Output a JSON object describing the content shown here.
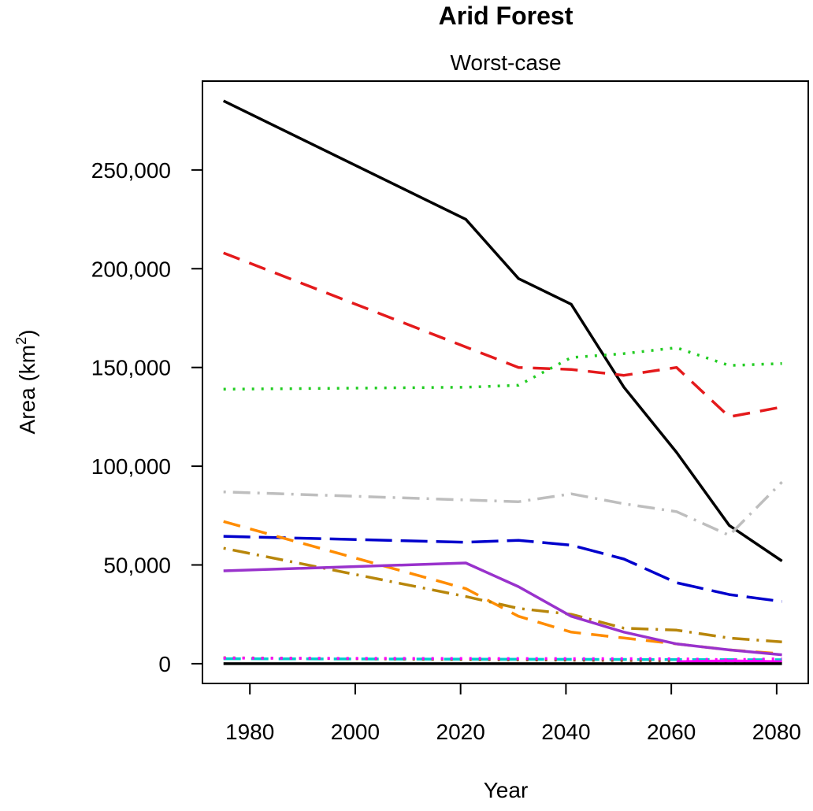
{
  "chart_data": {
    "type": "line",
    "title": "Arid Forest",
    "subtitle": "Worst-case",
    "xlabel": "Year",
    "ylabel_main": "Area (km",
    "ylabel_sup": "2",
    "ylabel_close": ")",
    "xlim": [
      1971,
      2086
    ],
    "ylim": [
      -10000,
      295000
    ],
    "xticks": [
      1980,
      2000,
      2020,
      2040,
      2060,
      2080
    ],
    "xtick_labels": [
      "1980",
      "2000",
      "2020",
      "2040",
      "2060",
      "2080"
    ],
    "yticks": [
      0,
      50000,
      100000,
      150000,
      200000,
      250000
    ],
    "ytick_labels": [
      "0",
      "50,000",
      "100,000",
      "150,000",
      "200,000",
      "250,000"
    ],
    "grid": false,
    "series": [
      {
        "color": "#000000",
        "dash": "solid",
        "x": [
          1975,
          2021,
          2031,
          2041,
          2051,
          2061,
          2071,
          2081
        ],
        "y": [
          285000,
          225000,
          195000,
          182000,
          140000,
          107000,
          70000,
          52000
        ]
      },
      {
        "color": "#e41a1c",
        "dash": "dashed",
        "x": [
          1975,
          2031,
          2041,
          2051,
          2061,
          2071,
          2081
        ],
        "y": [
          208000,
          150000,
          149000,
          146000,
          150000,
          125000,
          130000
        ]
      },
      {
        "color": "#22cc22",
        "dash": "dotted",
        "x": [
          1975,
          2021,
          2031,
          2041,
          2051,
          2061,
          2071,
          2081
        ],
        "y": [
          139000,
          140000,
          141000,
          155000,
          157000,
          160000,
          151000,
          152000
        ]
      },
      {
        "color": "#bebebe",
        "dash": "dotdash",
        "x": [
          1975,
          2031,
          2041,
          2051,
          2061,
          2071,
          2081
        ],
        "y": [
          87000,
          82000,
          86000,
          81000,
          77000,
          65000,
          92000
        ]
      },
      {
        "color": "#0000cc",
        "dash": "longdash",
        "x": [
          1975,
          2021,
          2031,
          2041,
          2051,
          2061,
          2071,
          2081
        ],
        "y": [
          64500,
          61500,
          62500,
          60000,
          53000,
          41000,
          35000,
          31500
        ]
      },
      {
        "color": "#ff8c00",
        "dash": "dashed",
        "x": [
          1975,
          2021,
          2031,
          2041,
          2051,
          2061,
          2071,
          2081
        ],
        "y": [
          72000,
          38000,
          24000,
          16000,
          13000,
          10000,
          7000,
          5000
        ]
      },
      {
        "color": "#b8860b",
        "dash": "dotdash",
        "x": [
          1975,
          2021,
          2031,
          2041,
          2051,
          2061,
          2071,
          2081
        ],
        "y": [
          58500,
          34000,
          28000,
          25000,
          18000,
          17000,
          13000,
          11000
        ]
      },
      {
        "color": "#9932cc",
        "dash": "solid",
        "x": [
          1975,
          2021,
          2031,
          2041,
          2051,
          2061,
          2071,
          2081
        ],
        "y": [
          47000,
          51000,
          39000,
          24000,
          16000,
          10000,
          7000,
          4500
        ]
      },
      {
        "color": "#00cccc",
        "dash": "dashed",
        "x": [
          1975,
          2081
        ],
        "y": [
          2500,
          2000
        ]
      },
      {
        "color": "#a0522d",
        "dash": "dotted",
        "x": [
          1975,
          2081
        ],
        "y": [
          3000,
          1000
        ]
      },
      {
        "color": "#ff00ff",
        "dash": "dotted",
        "x": [
          1975,
          2061,
          2071,
          2081
        ],
        "y": [
          2800,
          2500,
          2000,
          2500
        ]
      },
      {
        "color": "#ff00ff",
        "dash": "solid",
        "x": [
          2061,
          2071,
          2081
        ],
        "y": [
          1000,
          1500,
          1000
        ]
      },
      {
        "color": "#000000",
        "dash": "solid",
        "x": [
          1975,
          2081
        ],
        "y": [
          0,
          0
        ]
      }
    ]
  }
}
